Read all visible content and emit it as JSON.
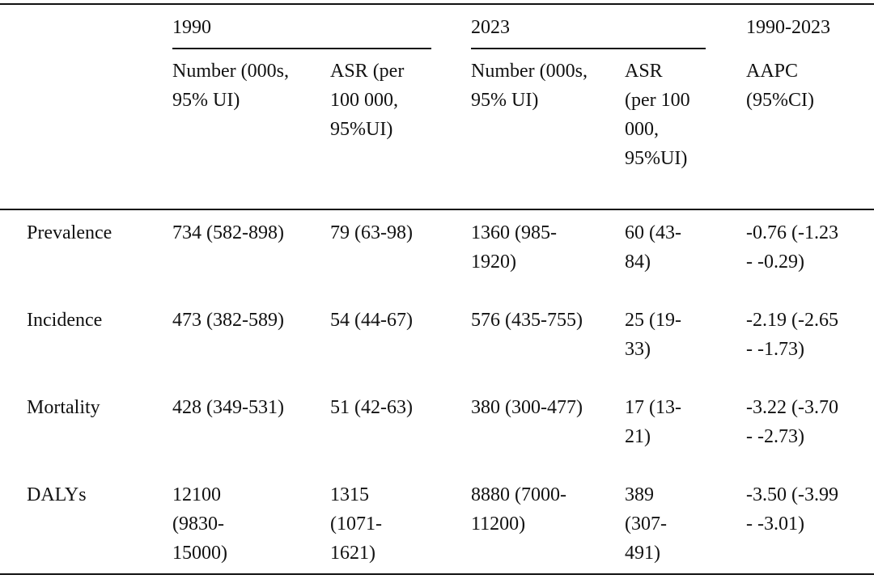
{
  "table": {
    "groups": [
      "1990",
      "2023",
      "1990-2023"
    ],
    "columns": [
      "Number (000s, 95% UI)",
      "ASR (per 100 000, 95%UI)",
      "Number (000s, 95% UI)",
      "ASR (per 100 000, 95%UI)",
      "AAPC (95%CI)"
    ],
    "rows": [
      [
        "Prevalence",
        "734 (582-898)",
        "79 (63-98)",
        "1360 (985-1920)",
        "60 (43-84)",
        "-0.76 (-1.23 - -0.29)"
      ],
      [
        "Incidence",
        "473 (382-589)",
        "54 (44-67)",
        "576 (435-755)",
        "25 (19-33)",
        "-2.19 (-2.65 - -1.73)"
      ],
      [
        "Mortality",
        "428 (349-531)",
        "51 (42-63)",
        "380 (300-477)",
        "17 (13-21)",
        "-3.22 (-3.70 - -2.73)"
      ],
      [
        "DALYs",
        "12100 (9830-15000)",
        "1315 (1071-1621)",
        "8880 (7000-11200)",
        "389 (307-491)",
        "-3.50 (-3.99 - -3.01)"
      ]
    ]
  }
}
